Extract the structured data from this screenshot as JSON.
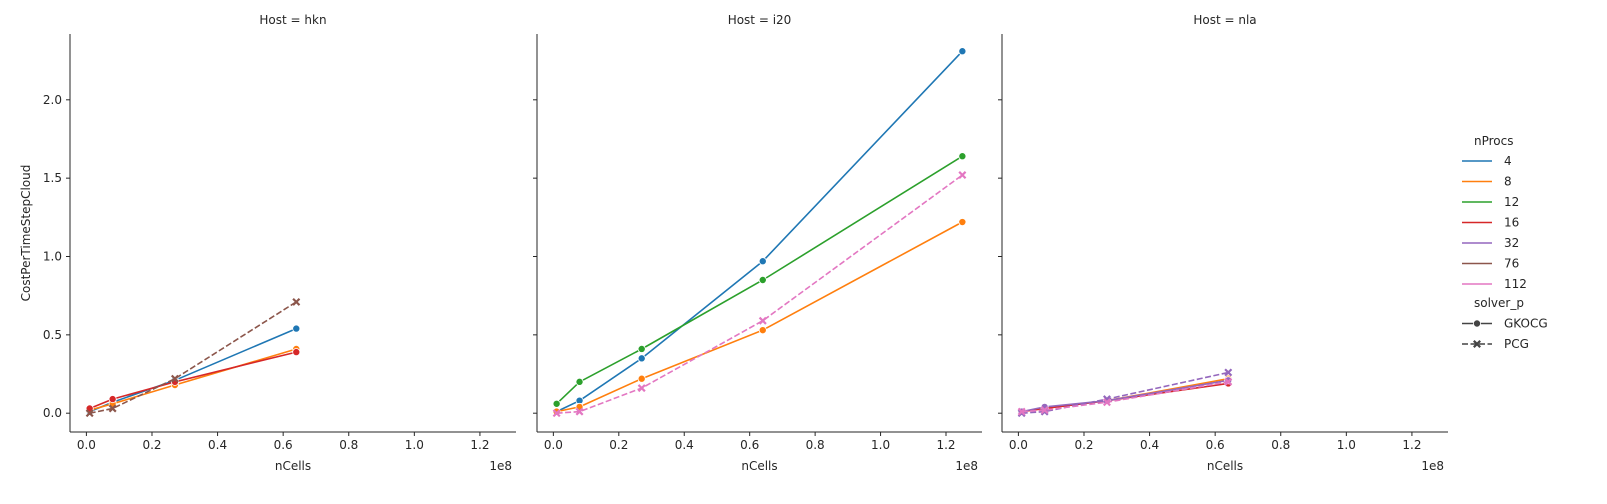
{
  "chart_data": {
    "type": "line",
    "xlabel": "nCells",
    "ylabel": "CostPerTimeStepCloud",
    "x_offset_label": "1e8",
    "xlim": [
      -0.05,
      1.31
    ],
    "ylim": [
      -0.12,
      2.42
    ],
    "x_ticks": [
      0.0,
      0.2,
      0.4,
      0.6,
      0.8,
      1.0,
      1.2
    ],
    "x_tick_labels": [
      "0.0",
      "0.2",
      "0.4",
      "0.6",
      "0.8",
      "1.0",
      "1.2"
    ],
    "y_ticks": [
      0.0,
      0.5,
      1.0,
      1.5,
      2.0
    ],
    "y_tick_labels": [
      "0.0",
      "0.5",
      "1.0",
      "1.5",
      "2.0"
    ],
    "legend": {
      "placement": "right",
      "hue_title": "nProcs",
      "hue_entries": [
        {
          "label": "4",
          "color": "#1f77b4"
        },
        {
          "label": "8",
          "color": "#ff7f0e"
        },
        {
          "label": "12",
          "color": "#2ca02c"
        },
        {
          "label": "16",
          "color": "#d62728"
        },
        {
          "label": "32",
          "color": "#9467bd"
        },
        {
          "label": "76",
          "color": "#8c564b"
        },
        {
          "label": "112",
          "color": "#e377c2"
        }
      ],
      "style_title": "solver_p",
      "style_entries": [
        {
          "label": "GKOCG",
          "dash": "solid",
          "marker": "circle"
        },
        {
          "label": "PCG",
          "dash": "dashed",
          "marker": "x"
        }
      ]
    },
    "panels": [
      {
        "title": "Host = hkn",
        "series": [
          {
            "nProcs": "4",
            "color": "#1f77b4",
            "style": "GKOCG",
            "x": [
              0.01,
              0.08,
              0.27,
              0.64
            ],
            "y": [
              0.01,
              0.07,
              0.21,
              0.54
            ]
          },
          {
            "nProcs": "8",
            "color": "#ff7f0e",
            "style": "GKOCG",
            "x": [
              0.01,
              0.08,
              0.27,
              0.64
            ],
            "y": [
              0.02,
              0.06,
              0.18,
              0.41
            ]
          },
          {
            "nProcs": "16",
            "color": "#d62728",
            "style": "GKOCG",
            "x": [
              0.01,
              0.08,
              0.27,
              0.64
            ],
            "y": [
              0.03,
              0.09,
              0.2,
              0.39
            ]
          },
          {
            "nProcs": "76",
            "color": "#8c564b",
            "style": "PCG",
            "x": [
              0.01,
              0.08,
              0.27,
              0.64
            ],
            "y": [
              0.0,
              0.03,
              0.22,
              0.71
            ]
          }
        ]
      },
      {
        "title": "Host = i20",
        "series": [
          {
            "nProcs": "4",
            "color": "#1f77b4",
            "style": "GKOCG",
            "x": [
              0.01,
              0.08,
              0.27,
              0.64,
              1.25
            ],
            "y": [
              0.01,
              0.08,
              0.35,
              0.97,
              2.31
            ]
          },
          {
            "nProcs": "8",
            "color": "#ff7f0e",
            "style": "GKOCG",
            "x": [
              0.01,
              0.08,
              0.27,
              0.64,
              1.25
            ],
            "y": [
              0.01,
              0.04,
              0.22,
              0.53,
              1.22
            ]
          },
          {
            "nProcs": "12",
            "color": "#2ca02c",
            "style": "GKOCG",
            "x": [
              0.01,
              0.08,
              0.27,
              0.64,
              1.25
            ],
            "y": [
              0.06,
              0.2,
              0.41,
              0.85,
              1.64
            ]
          },
          {
            "nProcs": "112",
            "color": "#e377c2",
            "style": "PCG",
            "x": [
              0.01,
              0.08,
              0.27,
              0.64,
              1.25
            ],
            "y": [
              0.0,
              0.01,
              0.16,
              0.59,
              1.52
            ]
          }
        ]
      },
      {
        "title": "Host = nla",
        "series": [
          {
            "nProcs": "8",
            "color": "#ff7f0e",
            "style": "GKOCG",
            "x": [
              0.01,
              0.08,
              0.27,
              0.64
            ],
            "y": [
              0.01,
              0.03,
              0.08,
              0.22
            ]
          },
          {
            "nProcs": "16",
            "color": "#d62728",
            "style": "GKOCG",
            "x": [
              0.01,
              0.08,
              0.27,
              0.64
            ],
            "y": [
              0.01,
              0.03,
              0.08,
              0.19
            ]
          },
          {
            "nProcs": "32",
            "color": "#9467bd",
            "style": "GKOCG",
            "x": [
              0.01,
              0.08,
              0.27,
              0.64
            ],
            "y": [
              0.01,
              0.04,
              0.08,
              0.21
            ]
          },
          {
            "nProcs": "32",
            "color": "#9467bd",
            "style": "PCG",
            "x": [
              0.01,
              0.08,
              0.27,
              0.64
            ],
            "y": [
              0.0,
              0.01,
              0.09,
              0.26
            ]
          },
          {
            "nProcs": "112",
            "color": "#e377c2",
            "style": "PCG",
            "x": [
              0.01,
              0.08,
              0.27,
              0.64
            ],
            "y": [
              0.01,
              0.02,
              0.07,
              0.2
            ]
          }
        ]
      }
    ]
  }
}
